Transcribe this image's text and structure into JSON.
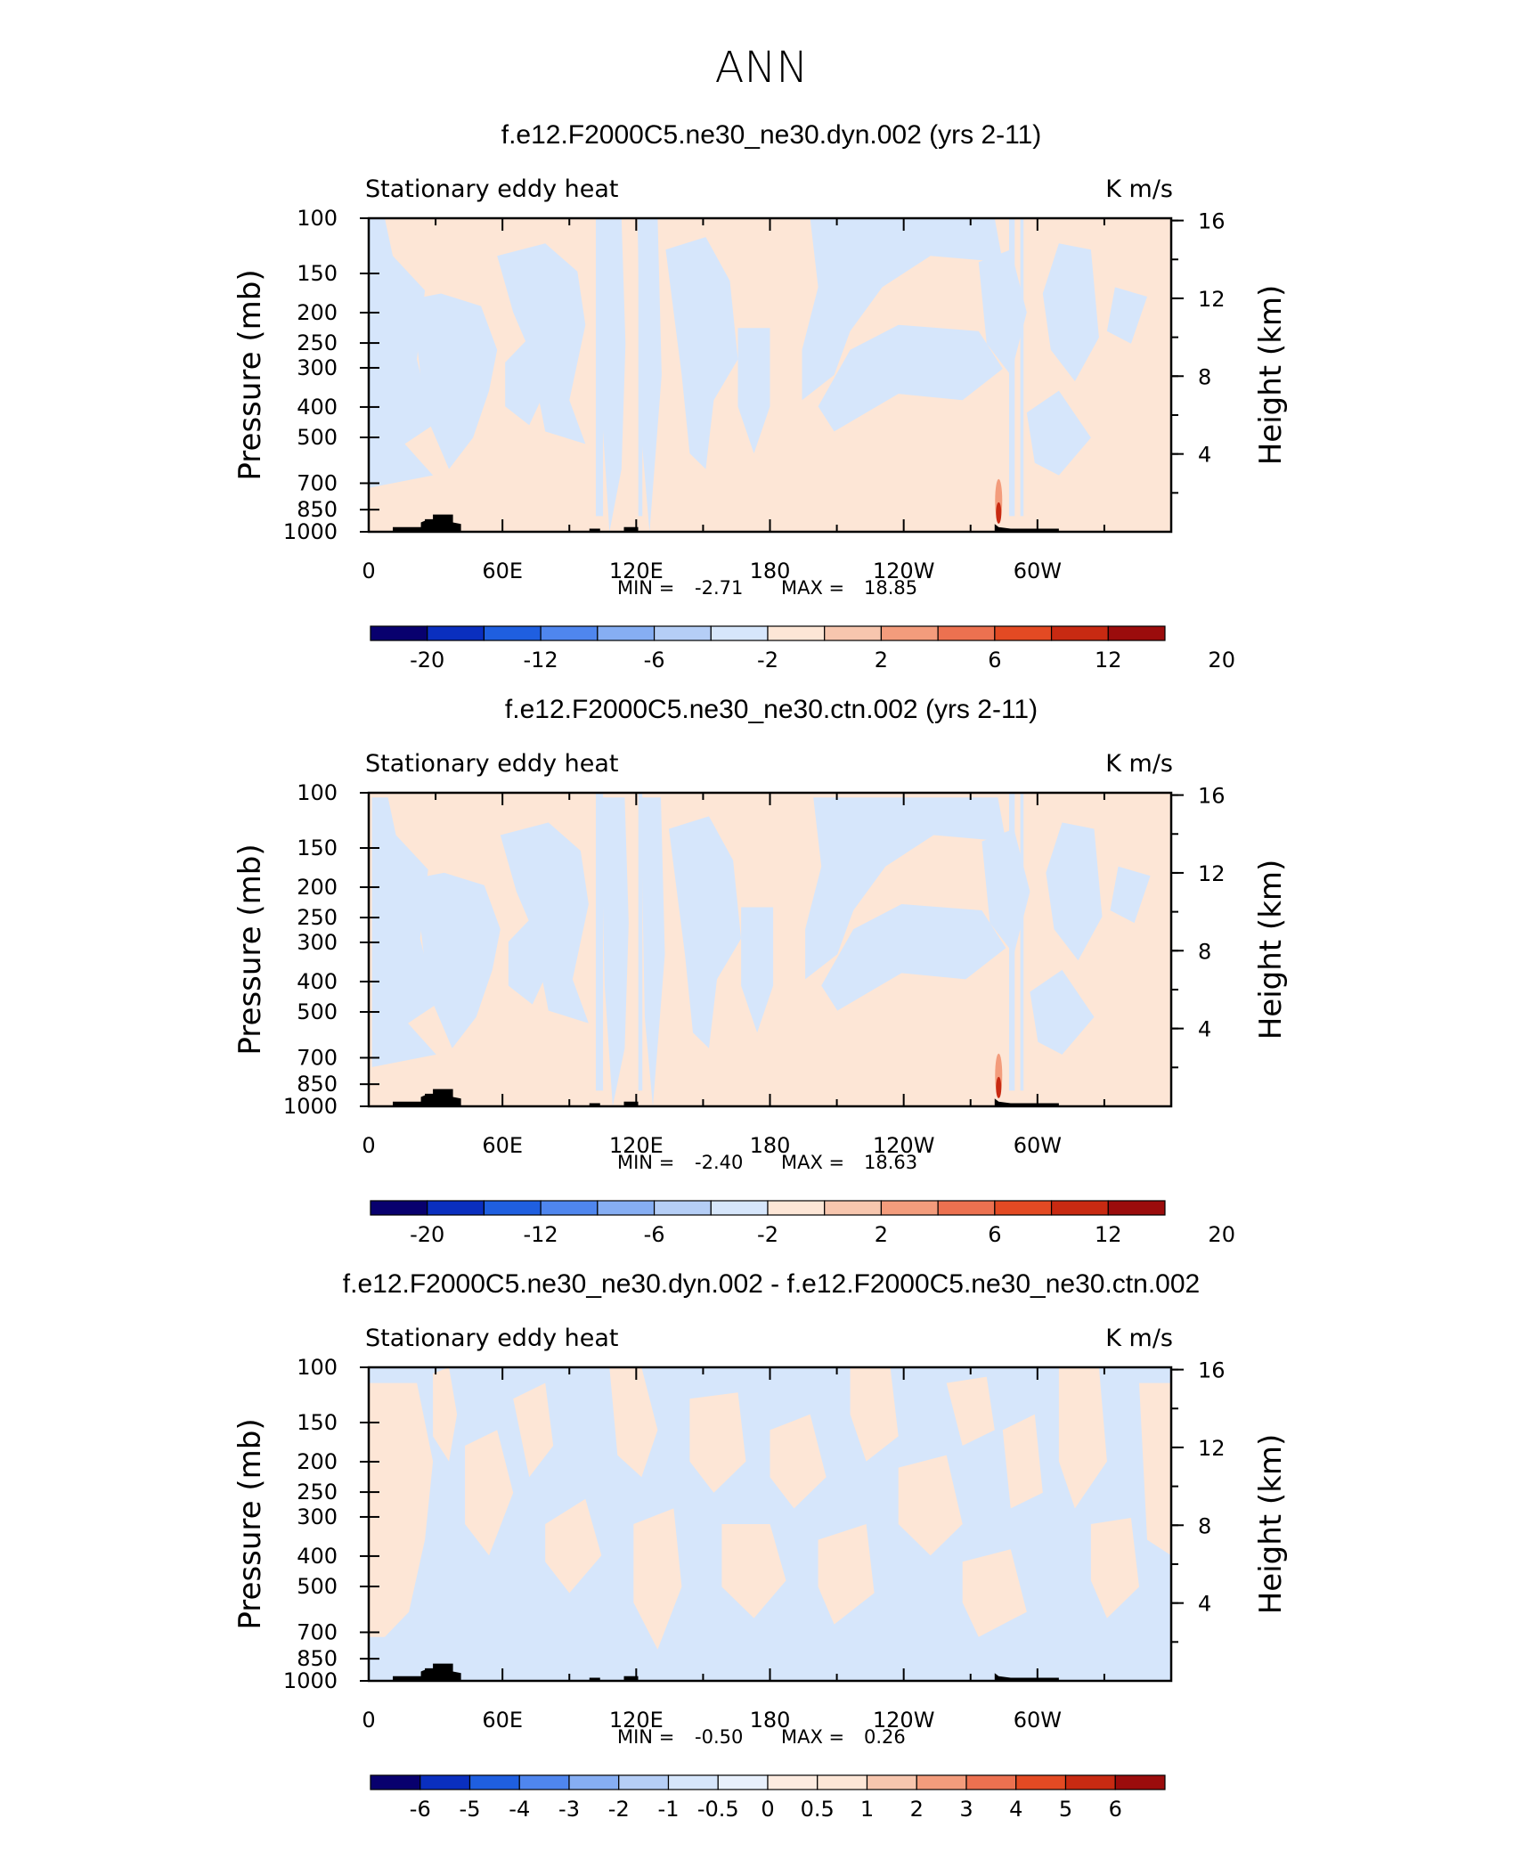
{
  "figure": {
    "title": "ANN"
  },
  "chart_data": [
    {
      "type": "heatmap",
      "title": "f.e12.F2000C5.ne30_ne30.dyn.002 (yrs 2-11)",
      "variable_label": "Stationary eddy heat",
      "units": "K m/s",
      "ylabel": "Pressure (mb)",
      "ylabel_right": "Height (km)",
      "x_ticks": [
        "0",
        "60E",
        "120E",
        "180",
        "120W",
        "60W"
      ],
      "y_ticks": [
        100,
        150,
        200,
        250,
        300,
        400,
        500,
        700,
        850,
        1000
      ],
      "y_right_ticks": [
        16,
        12,
        8,
        4
      ],
      "ylim": [
        1000,
        100
      ],
      "y_scale": "log",
      "x_range_deg": [
        0,
        360
      ],
      "stats": {
        "min_label": "MIN =",
        "min": "-2.71",
        "max_label": "MAX =",
        "max": "18.85"
      },
      "colorbar": {
        "labels": [
          "-20",
          "-12",
          "-6",
          "-2",
          "2",
          "6",
          "12",
          "20"
        ],
        "colors": [
          "#08006e",
          "#0a2fbf",
          "#1f5fe0",
          "#4f86ee",
          "#86aef3",
          "#b5cef6",
          "#d6e6fb",
          "#fde6d6",
          "#f7c6ae",
          "#f39c7c",
          "#ec7150",
          "#e34a23",
          "#c82a12",
          "#9b0c0c"
        ]
      }
    },
    {
      "type": "heatmap",
      "title": "f.e12.F2000C5.ne30_ne30.ctn.002 (yrs 2-11)",
      "variable_label": "Stationary eddy heat",
      "units": "K m/s",
      "ylabel": "Pressure (mb)",
      "ylabel_right": "Height (km)",
      "x_ticks": [
        "0",
        "60E",
        "120E",
        "180",
        "120W",
        "60W"
      ],
      "y_ticks": [
        100,
        150,
        200,
        250,
        300,
        400,
        500,
        700,
        850,
        1000
      ],
      "y_right_ticks": [
        16,
        12,
        8,
        4
      ],
      "ylim": [
        1000,
        100
      ],
      "y_scale": "log",
      "x_range_deg": [
        0,
        360
      ],
      "stats": {
        "min_label": "MIN =",
        "min": "-2.40",
        "max_label": "MAX =",
        "max": "18.63"
      },
      "colorbar": {
        "labels": [
          "-20",
          "-12",
          "-6",
          "-2",
          "2",
          "6",
          "12",
          "20"
        ],
        "colors": [
          "#08006e",
          "#0a2fbf",
          "#1f5fe0",
          "#4f86ee",
          "#86aef3",
          "#b5cef6",
          "#d6e6fb",
          "#fde6d6",
          "#f7c6ae",
          "#f39c7c",
          "#ec7150",
          "#e34a23",
          "#c82a12",
          "#9b0c0c"
        ]
      }
    },
    {
      "type": "heatmap",
      "title": "f.e12.F2000C5.ne30_ne30.dyn.002 - f.e12.F2000C5.ne30_ne30.ctn.002",
      "variable_label": "Stationary eddy heat",
      "units": "K m/s",
      "ylabel": "Pressure (mb)",
      "ylabel_right": "Height (km)",
      "x_ticks": [
        "0",
        "60E",
        "120E",
        "180",
        "120W",
        "60W"
      ],
      "y_ticks": [
        100,
        150,
        200,
        250,
        300,
        400,
        500,
        700,
        850,
        1000
      ],
      "y_right_ticks": [
        16,
        12,
        8,
        4
      ],
      "ylim": [
        1000,
        100
      ],
      "y_scale": "log",
      "x_range_deg": [
        0,
        360
      ],
      "stats": {
        "min_label": "MIN =",
        "min": "-0.50",
        "max_label": "MAX =",
        "max": "0.26"
      },
      "colorbar": {
        "labels": [
          "-6",
          "-5",
          "-4",
          "-3",
          "-2",
          "-1",
          "-0.5",
          "0",
          "0.5",
          "1",
          "2",
          "3",
          "4",
          "5",
          "6"
        ],
        "colors": [
          "#08006e",
          "#0a2fbf",
          "#1f5fe0",
          "#4f86ee",
          "#86aef3",
          "#b5cef6",
          "#d6e6fb",
          "#e8f0fc",
          "#fdebe0",
          "#fde6d6",
          "#f7c6ae",
          "#f39c7c",
          "#ec7150",
          "#e34a23",
          "#c82a12",
          "#9b0c0c"
        ]
      }
    }
  ]
}
